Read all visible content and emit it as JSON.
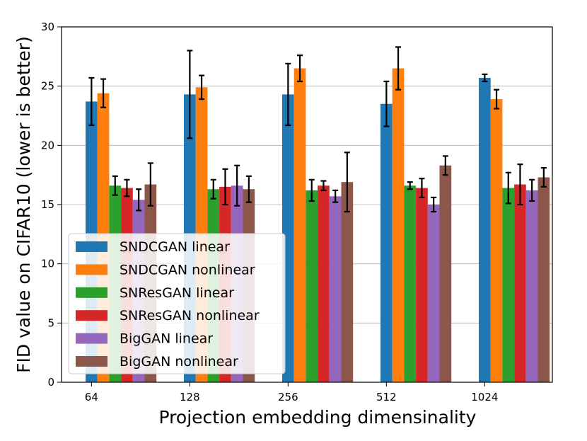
{
  "chart_data": {
    "type": "bar",
    "xlabel": "Projection embedding dimensinality",
    "ylabel": "FID value on CIFAR10 (lower is better)",
    "categories": [
      "64",
      "128",
      "256",
      "512",
      "1024"
    ],
    "ylim": [
      0,
      30
    ],
    "yticks": [
      "0",
      "5",
      "10",
      "15",
      "20",
      "25",
      "30"
    ],
    "grid": "horizontal",
    "legend_position": "lower-left",
    "series": [
      {
        "name": "SNDCGAN linear",
        "color": "#1f77b4",
        "values": [
          23.7,
          24.3,
          24.3,
          23.5,
          25.7
        ],
        "errors": [
          2.0,
          3.7,
          2.6,
          1.9,
          0.3
        ]
      },
      {
        "name": "SNDCGAN nonlinear",
        "color": "#ff7f0e",
        "values": [
          24.4,
          24.9,
          26.5,
          26.5,
          23.9
        ],
        "errors": [
          1.2,
          1.0,
          1.1,
          1.8,
          0.8
        ]
      },
      {
        "name": "SNResGAN linear",
        "color": "#2ca02c",
        "values": [
          16.6,
          16.3,
          16.2,
          16.6,
          16.4
        ],
        "errors": [
          0.8,
          0.8,
          0.9,
          0.3,
          1.3
        ]
      },
      {
        "name": "SNResGAN nonlinear",
        "color": "#d62728",
        "values": [
          16.4,
          16.5,
          16.6,
          16.4,
          16.7
        ],
        "errors": [
          0.7,
          1.5,
          0.4,
          0.8,
          1.7
        ]
      },
      {
        "name": "BigGAN linear",
        "color": "#9467bd",
        "values": [
          15.4,
          16.6,
          15.7,
          15.0,
          16.2
        ],
        "errors": [
          0.9,
          1.7,
          0.5,
          0.6,
          0.9
        ]
      },
      {
        "name": "BigGAN nonlinear",
        "color": "#8c564b",
        "values": [
          16.7,
          16.3,
          16.9,
          18.3,
          17.3
        ],
        "errors": [
          1.8,
          1.1,
          2.5,
          0.8,
          0.8
        ]
      }
    ]
  }
}
